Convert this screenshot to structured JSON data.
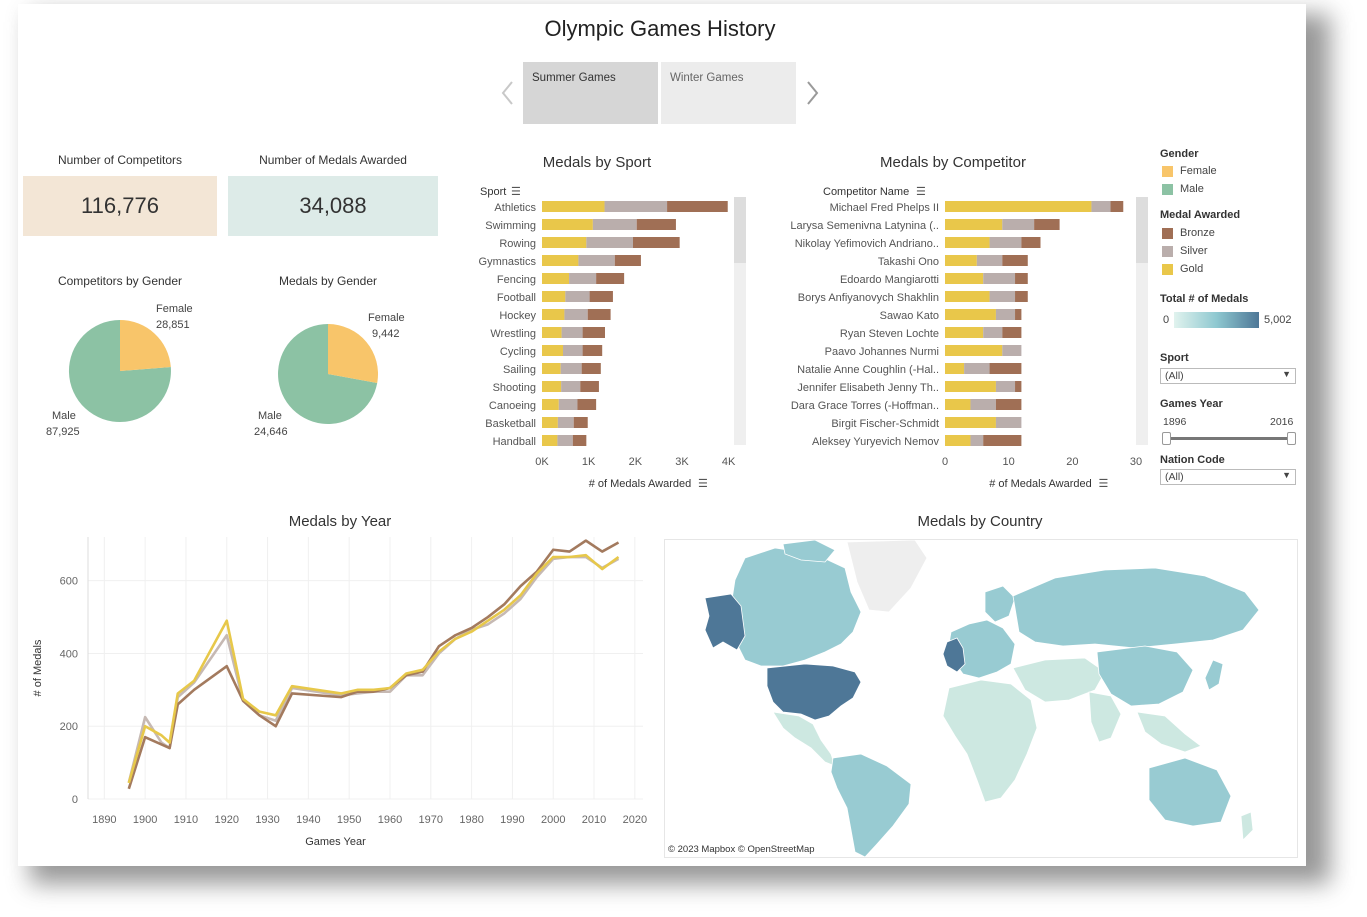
{
  "title": "Olympic Games History",
  "tabs": [
    {
      "label": "Summer Games",
      "active": true
    },
    {
      "label": "Winter Games",
      "active": false
    }
  ],
  "kpis": {
    "competitors_label": "Number of Competitors",
    "competitors_value": "116,776",
    "medals_label": "Number of Medals Awarded",
    "medals_value": "34,088"
  },
  "pies": {
    "competitors": {
      "title": "Competitors by Gender",
      "female_label": "Female",
      "female_value": "28,851",
      "male_label": "Male",
      "male_value": "87,925"
    },
    "medals": {
      "title": "Medals by Gender",
      "female_label": "Female",
      "female_value": "9,442",
      "male_label": "Male",
      "male_value": "24,646"
    }
  },
  "colors": {
    "female": "#F8C56A",
    "male": "#8CC2A4",
    "bronze": "#A06F55",
    "silver": "#BAAEAC",
    "gold": "#E9C74A",
    "line_gold": "#E7C84A",
    "line_silver": "#C6B9B3",
    "line_bronze": "#A37A5E",
    "kpi_competitors_bg": "#F3E6D6",
    "kpi_medals_bg": "#DDEBE8",
    "map_dark": "#4E7797",
    "map_mid": "#98CBD2",
    "map_light": "#CDE8E1"
  },
  "legend": {
    "gender_title": "Gender",
    "gender_items": [
      "Female",
      "Male"
    ],
    "medal_title": "Medal Awarded",
    "medal_items": [
      "Bronze",
      "Silver",
      "Gold"
    ],
    "total_title": "Total # of Medals",
    "total_min": "0",
    "total_max": "5,002"
  },
  "filters": {
    "sport_label": "Sport",
    "sport_value": "(All)",
    "year_label": "Games Year",
    "year_min": "1896",
    "year_max": "2016",
    "nation_label": "Nation Code",
    "nation_value": "(All)"
  },
  "map": {
    "title": "Medals by Country",
    "attribution": "© 2023 Mapbox  © OpenStreetMap"
  },
  "chart_data": [
    {
      "id": "sport",
      "type": "bar",
      "title": "Medals by Sport",
      "orientation": "horizontal",
      "stacked": true,
      "ylabel": "Sport",
      "xlabel": "# of Medals Awarded",
      "xlim": [
        0,
        4200
      ],
      "xticks": [
        "0K",
        "1K",
        "2K",
        "3K",
        "4K"
      ],
      "xtick_values": [
        0,
        1000,
        2000,
        3000,
        4000
      ],
      "categories": [
        "Athletics",
        "Swimming",
        "Rowing",
        "Gymnastics",
        "Fencing",
        "Football",
        "Hockey",
        "Wrestling",
        "Cycling",
        "Sailing",
        "Shooting",
        "Canoeing",
        "Basketball",
        "Handball"
      ],
      "series": [
        {
          "name": "Gold",
          "values": [
            1340,
            1090,
            950,
            780,
            580,
            500,
            480,
            420,
            450,
            400,
            410,
            360,
            340,
            330
          ]
        },
        {
          "name": "Silver",
          "values": [
            1340,
            940,
            1000,
            780,
            580,
            520,
            500,
            450,
            420,
            450,
            410,
            400,
            340,
            330
          ]
        },
        {
          "name": "Bronze",
          "values": [
            1300,
            840,
            1000,
            560,
            600,
            500,
            490,
            480,
            420,
            410,
            400,
            400,
            300,
            290
          ]
        }
      ]
    },
    {
      "id": "competitor",
      "type": "bar",
      "title": "Medals by Competitor",
      "orientation": "horizontal",
      "stacked": true,
      "ylabel": "Competitor Name",
      "xlabel": "# of Medals Awarded",
      "xlim": [
        0,
        30
      ],
      "xticks": [
        "0",
        "10",
        "20",
        "30"
      ],
      "xtick_values": [
        0,
        10,
        20,
        30
      ],
      "categories": [
        "Michael Fred Phelps II",
        "Larysa Semenivna Latynina (Diriy-)",
        "Nikolay Yefimovich Andrianov",
        "Takashi Ono",
        "Edoardo Mangiarotti",
        "Borys Anfiyanovych Shakhlin",
        "Sawao Kato",
        "Ryan Steven Lochte",
        "Paavo Johannes Nurmi",
        "Natalie Anne Coughlin (-Hall)",
        "Jennifer Elisabeth Jenny Thompson",
        "Dara Grace Torres (-Hoffman -Minas)",
        "Birgit Fischer-Schmidt",
        "Aleksey Yuryevich Nemov"
      ],
      "series": [
        {
          "name": "Gold",
          "values": [
            23,
            9,
            7,
            5,
            6,
            7,
            8,
            6,
            9,
            3,
            8,
            4,
            8,
            4
          ]
        },
        {
          "name": "Silver",
          "values": [
            3,
            5,
            5,
            4,
            5,
            4,
            3,
            3,
            3,
            4,
            3,
            4,
            4,
            2
          ]
        },
        {
          "name": "Bronze",
          "values": [
            2,
            4,
            3,
            4,
            2,
            2,
            1,
            3,
            0,
            5,
            1,
            4,
            0,
            6
          ]
        }
      ]
    },
    {
      "id": "year",
      "type": "line",
      "title": "Medals by Year",
      "xlabel": "Games Year",
      "ylabel": "# of Medals",
      "xlim": [
        1886,
        2022
      ],
      "ylim": [
        0,
        720
      ],
      "xticks": [
        1890,
        1900,
        1910,
        1920,
        1930,
        1940,
        1950,
        1960,
        1970,
        1980,
        1990,
        2000,
        2010,
        2020
      ],
      "yticks": [
        0,
        200,
        400,
        600
      ],
      "grid": true,
      "x": [
        1896,
        1900,
        1904,
        1906,
        1908,
        1912,
        1920,
        1924,
        1928,
        1932,
        1936,
        1948,
        1952,
        1956,
        1960,
        1964,
        1968,
        1972,
        1976,
        1980,
        1984,
        1988,
        1992,
        1996,
        2000,
        2004,
        2008,
        2012,
        2016
      ],
      "series": [
        {
          "name": "Gold",
          "values": [
            44,
            200,
            175,
            155,
            290,
            325,
            490,
            275,
            240,
            230,
            310,
            290,
            300,
            300,
            305,
            345,
            355,
            405,
            440,
            460,
            490,
            520,
            560,
            620,
            665,
            665,
            670,
            632,
            665
          ]
        },
        {
          "name": "Silver",
          "values": [
            45,
            225,
            155,
            140,
            280,
            320,
            450,
            270,
            230,
            215,
            305,
            285,
            290,
            295,
            295,
            340,
            340,
            400,
            440,
            465,
            480,
            510,
            550,
            610,
            660,
            665,
            665,
            635,
            660
          ]
        },
        {
          "name": "Bronze",
          "values": [
            28,
            170,
            150,
            140,
            260,
            300,
            365,
            270,
            230,
            200,
            290,
            280,
            295,
            295,
            305,
            340,
            350,
            420,
            450,
            470,
            500,
            535,
            585,
            625,
            685,
            680,
            710,
            680,
            705
          ]
        }
      ]
    }
  ]
}
